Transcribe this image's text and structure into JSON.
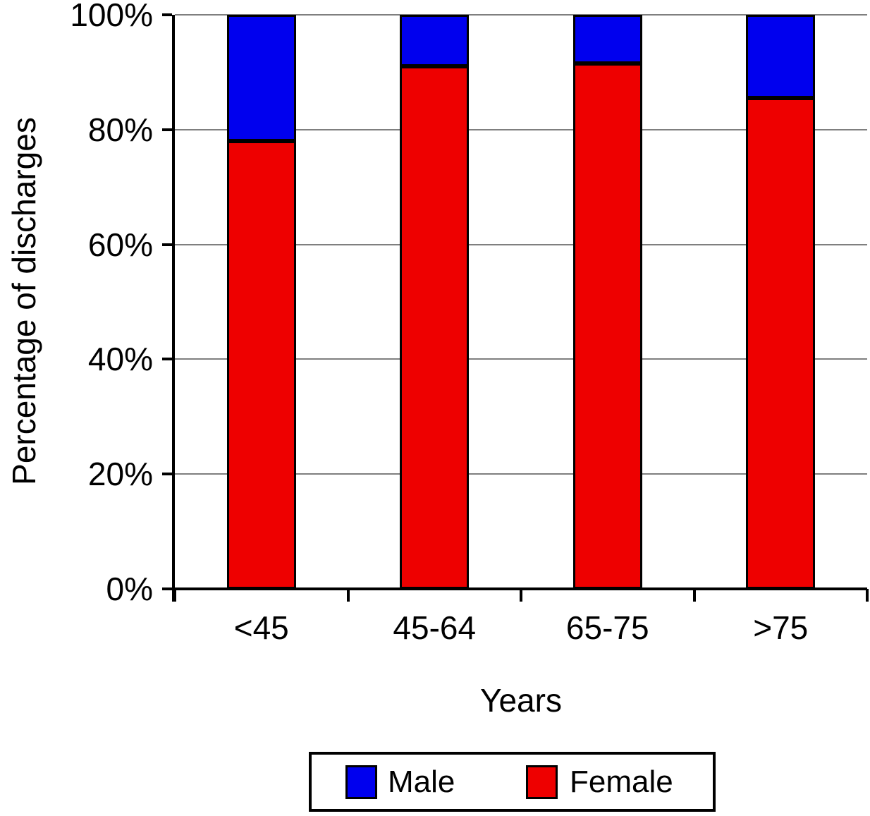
{
  "chart_data": {
    "type": "bar",
    "stacked": true,
    "categories": [
      "<45",
      "45-64",
      "65-75",
      ">75"
    ],
    "series": [
      {
        "name": "Female",
        "color": "#EE0000",
        "values": [
          78,
          91,
          91.5,
          85.5
        ]
      },
      {
        "name": "Male",
        "color": "#0000EE",
        "values": [
          22,
          9,
          8.5,
          14.5
        ]
      }
    ],
    "xlabel": "Years",
    "ylabel": "Percentage of discharges",
    "ylim": [
      0,
      100
    ],
    "ytick_labels": [
      "0%",
      "20%",
      "40%",
      "60%",
      "80%",
      "100%"
    ],
    "ytick_values": [
      0,
      20,
      40,
      60,
      80,
      100
    ],
    "grid": true,
    "gridline_color": "#7F7F7F",
    "axis_color": "#000000",
    "legend_position": "bottom",
    "legend_entries": [
      {
        "label": "Male",
        "color": "#0000EE"
      },
      {
        "label": "Female",
        "color": "#EE0000"
      }
    ]
  }
}
